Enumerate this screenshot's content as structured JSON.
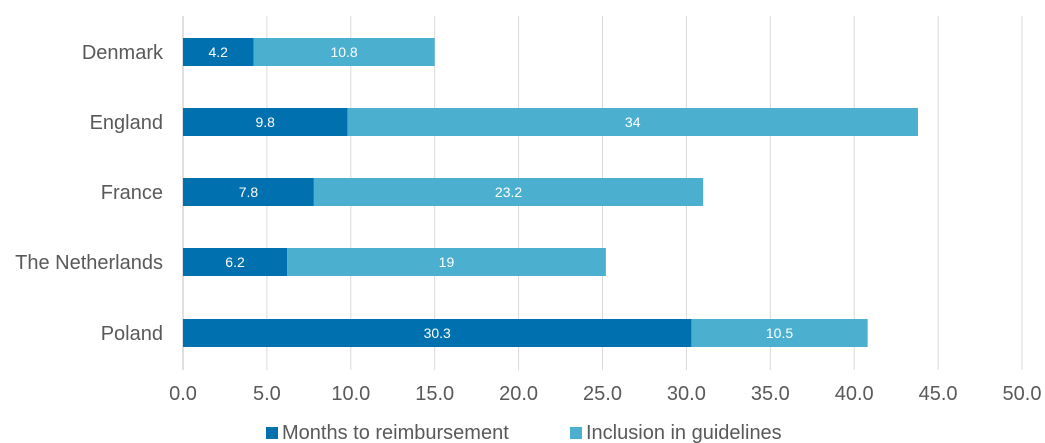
{
  "chart_data": {
    "type": "bar",
    "orientation": "horizontal",
    "stacked": true,
    "categories": [
      "Denmark",
      "England",
      "France",
      "The Netherlands",
      "Poland"
    ],
    "series": [
      {
        "name": "Months to reimbursement",
        "color": "#0070AF",
        "values": [
          4.2,
          9.8,
          7.8,
          6.2,
          30.3
        ]
      },
      {
        "name": "Inclusion in guidelines",
        "color": "#4BB0D0",
        "values": [
          10.8,
          34,
          23.2,
          19,
          10.5
        ]
      }
    ],
    "data_labels": true,
    "xlim": [
      0,
      50
    ],
    "xticks": [
      "0.0",
      "5.0",
      "10.0",
      "15.0",
      "20.0",
      "25.0",
      "30.0",
      "35.0",
      "40.0",
      "45.0",
      "50.0"
    ],
    "grid": "vertical",
    "legend_position": "bottom",
    "title": "",
    "xlabel": "",
    "ylabel": ""
  }
}
